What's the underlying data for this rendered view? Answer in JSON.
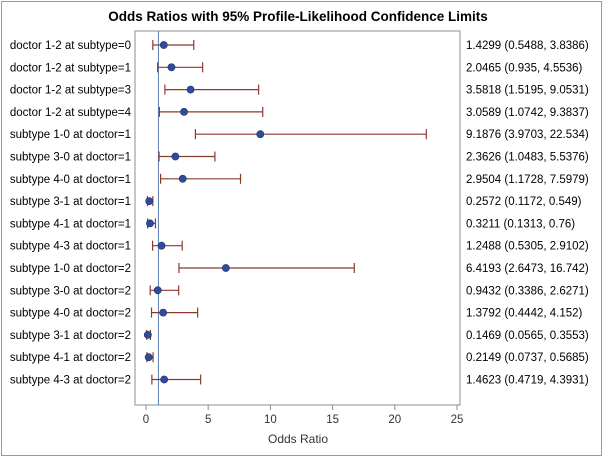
{
  "chart_data": {
    "type": "scatter",
    "title": "Odds Ratios with 95% Profile-Likelihood Confidence Limits",
    "xlabel": "Odds Ratio",
    "xlim": [
      0,
      25
    ],
    "xticks": [
      "0",
      "5",
      "10",
      "15",
      "20",
      "25"
    ],
    "xtick_values": [
      0,
      5,
      10,
      15,
      20,
      25
    ],
    "reference_line": 1,
    "grid": false,
    "colors": {
      "marker": "#2f4b9a",
      "ci_line": "#8b3a2e",
      "reference": "#5c7fb3"
    },
    "rows": [
      {
        "label": "doctor 1-2 at subtype=0",
        "value": 1.4299,
        "lower": 0.5488,
        "upper": 3.8386,
        "text": "1.4299 (0.5488, 3.8386)"
      },
      {
        "label": "doctor 1-2 at subtype=1",
        "value": 2.0465,
        "lower": 0.935,
        "upper": 4.5536,
        "text": "2.0465 (0.935, 4.5536)"
      },
      {
        "label": "doctor 1-2 at subtype=3",
        "value": 3.5818,
        "lower": 1.5195,
        "upper": 9.0531,
        "text": "3.5818 (1.5195, 9.0531)"
      },
      {
        "label": "doctor 1-2 at subtype=4",
        "value": 3.0589,
        "lower": 1.0742,
        "upper": 9.3837,
        "text": "3.0589 (1.0742, 9.3837)"
      },
      {
        "label": "subtype 1-0 at doctor=1",
        "value": 9.1876,
        "lower": 3.9703,
        "upper": 22.534,
        "text": "9.1876 (3.9703, 22.534)"
      },
      {
        "label": "subtype 3-0 at doctor=1",
        "value": 2.3626,
        "lower": 1.0483,
        "upper": 5.5376,
        "text": "2.3626 (1.0483, 5.5376)"
      },
      {
        "label": "subtype 4-0 at doctor=1",
        "value": 2.9504,
        "lower": 1.1728,
        "upper": 7.5979,
        "text": "2.9504 (1.1728, 7.5979)"
      },
      {
        "label": "subtype 3-1 at doctor=1",
        "value": 0.2572,
        "lower": 0.1172,
        "upper": 0.549,
        "text": "0.2572 (0.1172, 0.549)"
      },
      {
        "label": "subtype 4-1 at doctor=1",
        "value": 0.3211,
        "lower": 0.1313,
        "upper": 0.76,
        "text": "0.3211 (0.1313, 0.76)"
      },
      {
        "label": "subtype 4-3 at doctor=1",
        "value": 1.2488,
        "lower": 0.5305,
        "upper": 2.9102,
        "text": "1.2488 (0.5305, 2.9102)"
      },
      {
        "label": "subtype 1-0 at doctor=2",
        "value": 6.4193,
        "lower": 2.6473,
        "upper": 16.742,
        "text": "6.4193 (2.6473, 16.742)"
      },
      {
        "label": "subtype 3-0 at doctor=2",
        "value": 0.9432,
        "lower": 0.3386,
        "upper": 2.6271,
        "text": "0.9432 (0.3386, 2.6271)"
      },
      {
        "label": "subtype 4-0 at doctor=2",
        "value": 1.3792,
        "lower": 0.4442,
        "upper": 4.152,
        "text": "1.3792 (0.4442, 4.152)"
      },
      {
        "label": "subtype 3-1 at doctor=2",
        "value": 0.1469,
        "lower": 0.0565,
        "upper": 0.3553,
        "text": "0.1469 (0.0565, 0.3553)"
      },
      {
        "label": "subtype 4-1 at doctor=2",
        "value": 0.2149,
        "lower": 0.0737,
        "upper": 0.5685,
        "text": "0.2149 (0.0737, 0.5685)"
      },
      {
        "label": "subtype 4-3 at doctor=2",
        "value": 1.4623,
        "lower": 0.4719,
        "upper": 4.3931,
        "text": "1.4623 (0.4719, 4.3931)"
      }
    ]
  }
}
